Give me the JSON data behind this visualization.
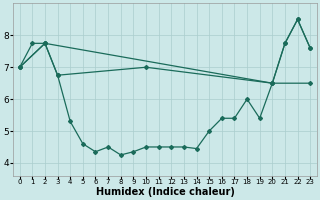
{
  "background_color": "#cce8e8",
  "line_color": "#1a6b5a",
  "grid_color": "#aacece",
  "xlabel": "Humidex (Indice chaleur)",
  "figsize": [
    3.2,
    2.0
  ],
  "dpi": 100,
  "ylim": [
    3.6,
    9.0
  ],
  "xlim": [
    -0.5,
    23.5
  ],
  "yticks": [
    4,
    5,
    6,
    7,
    8
  ],
  "s1_x": [
    0,
    1,
    2,
    3,
    4,
    5,
    6,
    7,
    8,
    9,
    10,
    11,
    12,
    13,
    14,
    15,
    16,
    17,
    18,
    19,
    20,
    21,
    22,
    23
  ],
  "s1_y": [
    7.0,
    7.75,
    7.75,
    6.75,
    5.3,
    4.6,
    4.35,
    4.5,
    4.25,
    4.35,
    4.5,
    4.5,
    4.5,
    4.5,
    4.45,
    5.0,
    5.4,
    5.4,
    6.0,
    5.4,
    6.5,
    7.75,
    8.5,
    7.6
  ],
  "s2_x": [
    0,
    2,
    20,
    21,
    22,
    23
  ],
  "s2_y": [
    7.0,
    7.75,
    6.5,
    7.75,
    8.5,
    7.6
  ],
  "s3_x": [
    0,
    2,
    3,
    10,
    20,
    23
  ],
  "s3_y": [
    7.0,
    7.75,
    6.75,
    7.0,
    6.5,
    6.5
  ]
}
